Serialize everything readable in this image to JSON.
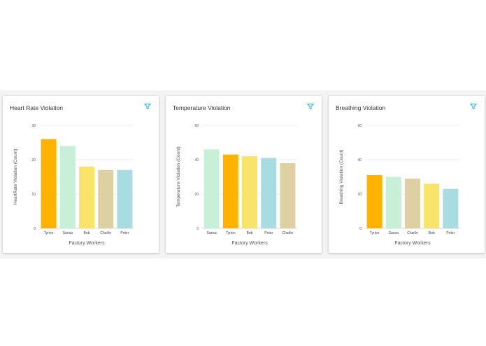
{
  "icons": {
    "filter": "filter-icon"
  },
  "colors": {
    "Tyrion": "#ffb300",
    "Sansa": "#c8f0d8",
    "Bob": "#f8e46a",
    "Charlie": "#ddd0a2",
    "Peter": "#a8dce0"
  },
  "cards": [
    {
      "title": "Heart Rate Violation",
      "chart_data": {
        "type": "bar",
        "title": "Heart Rate Violation",
        "categories": [
          "Tyrion",
          "Sansa",
          "Bob",
          "Charlie",
          "Peter"
        ],
        "values": [
          26,
          24,
          18,
          17,
          17
        ],
        "ylim": [
          0,
          30
        ],
        "yticks": [
          0,
          10,
          20,
          30
        ],
        "xlabel": "Factory Workers",
        "ylabel": "HeartRate Violation (Count)",
        "grid": true
      }
    },
    {
      "title": "Temperature Violation",
      "chart_data": {
        "type": "bar",
        "title": "Temperature Violation",
        "categories": [
          "Sansa",
          "Tyrion",
          "Bob",
          "Peter",
          "Charlie"
        ],
        "values": [
          46,
          43,
          42,
          41,
          38
        ],
        "ylim": [
          0,
          60
        ],
        "yticks": [
          0,
          20,
          40,
          60
        ],
        "xlabel": "Factory Workers",
        "ylabel": "Temperature Violation (Count)",
        "grid": true
      }
    },
    {
      "title": "Breathing Violation",
      "chart_data": {
        "type": "bar",
        "title": "Breathing Violation",
        "categories": [
          "Tyrion",
          "Sansa",
          "Charlie",
          "Bob",
          "Peter"
        ],
        "values": [
          31,
          30,
          29,
          26,
          23
        ],
        "ylim": [
          0,
          60
        ],
        "yticks": [
          0,
          20,
          40,
          60
        ],
        "xlabel": "Factory Workers",
        "ylabel": "Breathing Violation (Count)",
        "grid": true
      }
    }
  ]
}
